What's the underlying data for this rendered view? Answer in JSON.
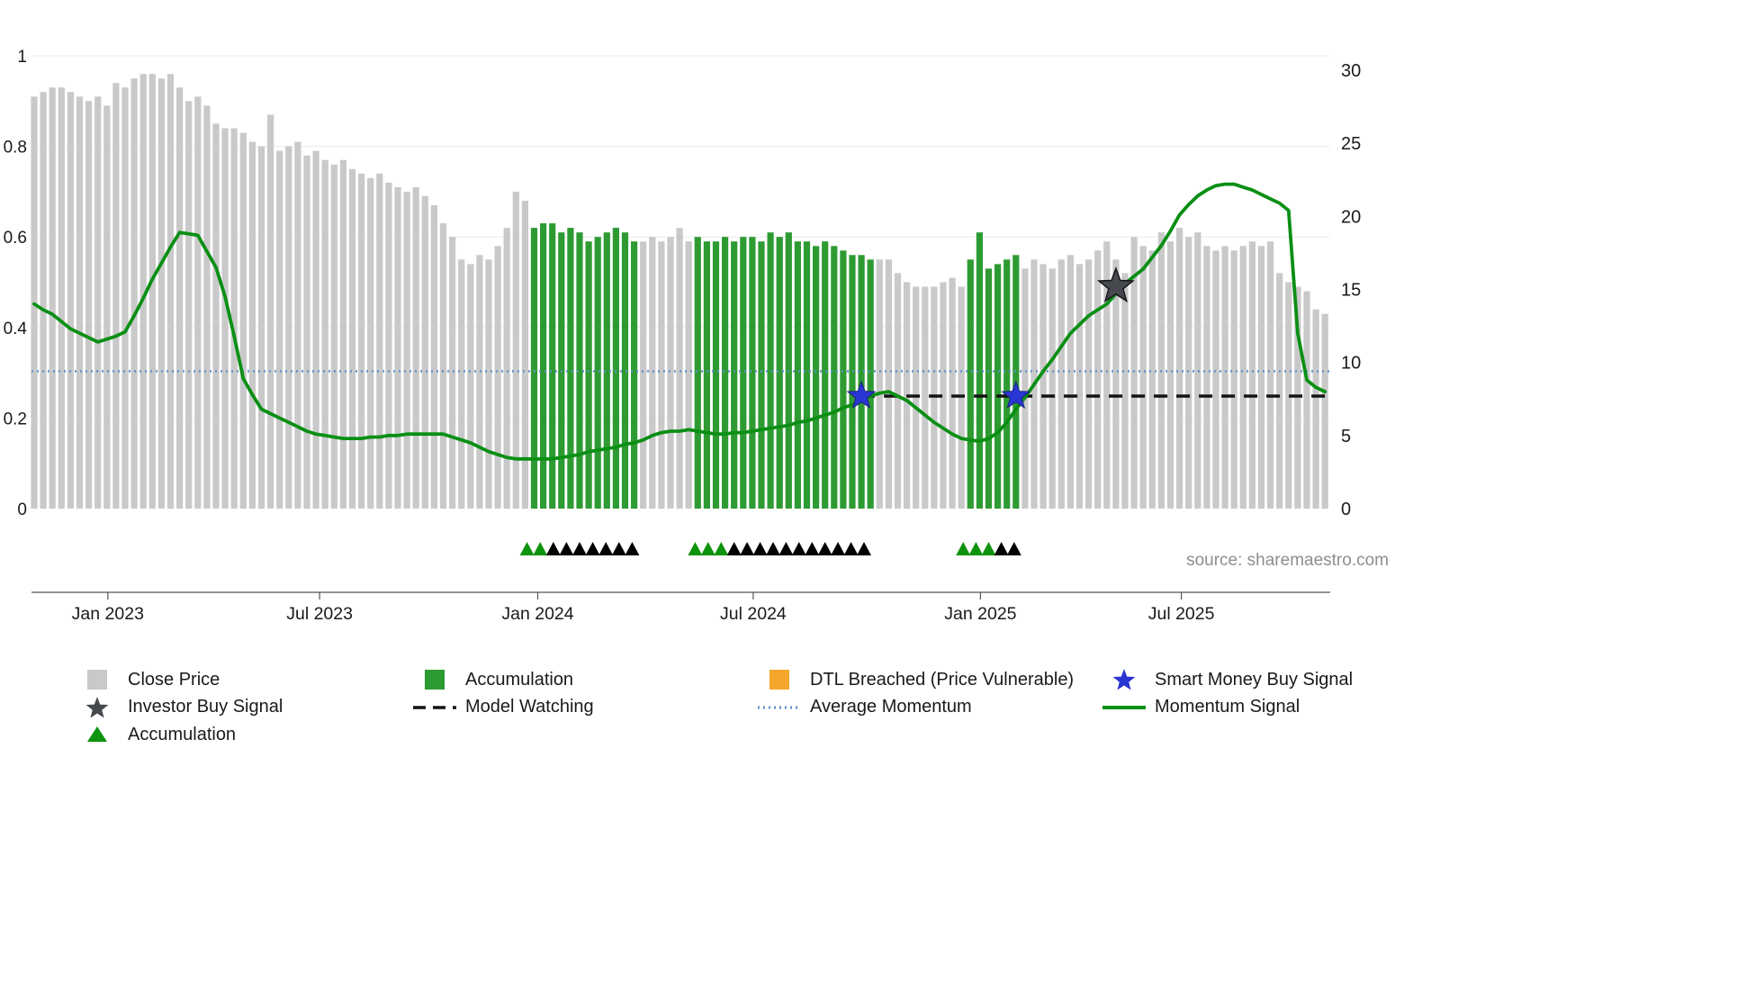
{
  "meta": {
    "source_text": "source: sharemaestro.com"
  },
  "colors": {
    "close_price": "#c9c9c9",
    "accumulation_bar": "#2e9b32",
    "momentum_line": "#0a8f14",
    "average_momentum": "#5c8fc8",
    "model_watching": "#141414",
    "smart_money": "#2936d2",
    "investor_buy": "#45484d",
    "dtl_breached": "#f5a62c",
    "accumulation_marker": "#0f930f",
    "watch_marker": "#000000",
    "grid": "#ebebeb",
    "axis_line": "#555555",
    "source_text": "#8e8e8e"
  },
  "axes": {
    "left_ticks": [
      "0",
      "0.2",
      "0.4",
      "0.6",
      "0.8",
      "1"
    ],
    "left_tick_values": [
      0,
      0.2,
      0.4,
      0.6,
      0.8,
      1
    ],
    "left_range": [
      0,
      1
    ],
    "right_ticks": [
      "0",
      "5",
      "10",
      "15",
      "20",
      "25",
      "30"
    ],
    "right_tick_values": [
      0,
      5,
      10,
      15,
      20,
      25,
      30
    ],
    "right_range": [
      0,
      30
    ],
    "x_ticks": [
      {
        "label": "Jan 2023",
        "index": 8.1
      },
      {
        "label": "Jul 2023",
        "index": 31.4
      },
      {
        "label": "Jan 2024",
        "index": 55.4
      },
      {
        "label": "Jul 2024",
        "index": 79.1
      },
      {
        "label": "Jan 2025",
        "index": 104.1
      },
      {
        "label": "Jul 2025",
        "index": 126.2
      }
    ],
    "grid": "faint-horizontal",
    "legend_position": "bottom"
  },
  "chart_data": {
    "type": "mixed",
    "title": "",
    "xlabel": "",
    "ylabel_left": "",
    "ylabel_right": "",
    "series": [
      {
        "name": "Close Price",
        "type": "bar",
        "axis": "left",
        "values": [
          0.91,
          0.92,
          0.93,
          0.93,
          0.92,
          0.91,
          0.9,
          0.91,
          0.89,
          0.94,
          0.93,
          0.95,
          0.96,
          0.96,
          0.95,
          0.96,
          0.93,
          0.9,
          0.91,
          0.89,
          0.85,
          0.84,
          0.84,
          0.83,
          0.81,
          0.8,
          0.87,
          0.79,
          0.8,
          0.81,
          0.78,
          0.79,
          0.77,
          0.76,
          0.77,
          0.75,
          0.74,
          0.73,
          0.74,
          0.72,
          0.71,
          0.7,
          0.71,
          0.69,
          0.67,
          0.63,
          0.6,
          0.55,
          0.54,
          0.56,
          0.55,
          0.58,
          0.62,
          0.7,
          0.68,
          0.62,
          0.63,
          0.63,
          0.61,
          0.62,
          0.61,
          0.59,
          0.6,
          0.61,
          0.62,
          0.61,
          0.59,
          0.59,
          0.6,
          0.59,
          0.6,
          0.62,
          0.59,
          0.6,
          0.59,
          0.59,
          0.6,
          0.59,
          0.6,
          0.6,
          0.59,
          0.61,
          0.6,
          0.61,
          0.59,
          0.59,
          0.58,
          0.59,
          0.58,
          0.57,
          0.56,
          0.56,
          0.55,
          0.55,
          0.55,
          0.52,
          0.5,
          0.49,
          0.49,
          0.49,
          0.5,
          0.51,
          0.49,
          0.55,
          0.61,
          0.53,
          0.54,
          0.55,
          0.56,
          0.53,
          0.55,
          0.54,
          0.53,
          0.55,
          0.56,
          0.54,
          0.55,
          0.57,
          0.59,
          0.55,
          0.52,
          0.6,
          0.58,
          0.57,
          0.61,
          0.59,
          0.62,
          0.6,
          0.61,
          0.58,
          0.57,
          0.58,
          0.57,
          0.58,
          0.59,
          0.58,
          0.59,
          0.52,
          0.5,
          0.49,
          0.48,
          0.44,
          0.43
        ]
      },
      {
        "name": "Momentum Signal",
        "type": "line",
        "axis": "right",
        "values": [
          14.0,
          13.6,
          13.3,
          12.8,
          12.3,
          12.0,
          11.7,
          11.4,
          11.6,
          11.8,
          12.1,
          13.2,
          14.4,
          15.7,
          16.8,
          17.9,
          18.9,
          18.8,
          18.7,
          17.6,
          16.5,
          14.5,
          11.8,
          8.9,
          7.8,
          6.8,
          6.5,
          6.2,
          5.9,
          5.6,
          5.3,
          5.1,
          5.0,
          4.9,
          4.8,
          4.8,
          4.8,
          4.9,
          4.9,
          5.0,
          5.0,
          5.1,
          5.1,
          5.1,
          5.1,
          5.1,
          4.9,
          4.7,
          4.5,
          4.2,
          3.9,
          3.7,
          3.5,
          3.4,
          3.4,
          3.4,
          3.4,
          3.4,
          3.5,
          3.6,
          3.7,
          3.9,
          4.0,
          4.1,
          4.2,
          4.4,
          4.5,
          4.7,
          5.0,
          5.2,
          5.3,
          5.3,
          5.4,
          5.3,
          5.2,
          5.1,
          5.1,
          5.2,
          5.2,
          5.3,
          5.4,
          5.5,
          5.6,
          5.7,
          5.9,
          6.0,
          6.2,
          6.4,
          6.6,
          6.9,
          7.1,
          7.4,
          7.7,
          7.9,
          8.0,
          7.7,
          7.4,
          6.9,
          6.4,
          5.9,
          5.5,
          5.1,
          4.8,
          4.7,
          4.6,
          4.8,
          5.2,
          5.9,
          6.8,
          7.6,
          8.5,
          9.4,
          10.2,
          11.1,
          12.0,
          12.6,
          13.2,
          13.6,
          14.0,
          14.7,
          15.4,
          15.9,
          16.4,
          17.2,
          18.0,
          19.0,
          20.1,
          20.8,
          21.4,
          21.8,
          22.1,
          22.2,
          22.2,
          22.0,
          21.8,
          21.5,
          21.2,
          20.9,
          20.4,
          12.0,
          8.8,
          8.3,
          8.0
        ]
      },
      {
        "name": "Average Momentum",
        "type": "hline-dotted",
        "axis": "right",
        "value": 9.4
      },
      {
        "name": "Model Watching",
        "type": "hline-dashed",
        "axis": "right",
        "value": 7.7,
        "start_index": 91,
        "end_index": 142
      }
    ],
    "accumulation_ranges": [
      [
        55,
        66
      ],
      [
        73,
        92
      ],
      [
        103,
        108
      ]
    ],
    "markers": {
      "smart_money_buy_signal": [
        {
          "index": 91,
          "value": 7.7
        },
        {
          "index": 108,
          "value": 7.7
        }
      ],
      "investor_buy_signal": [
        {
          "index": 119,
          "value": 15.2
        }
      ],
      "accumulation_triangle_groups": [
        {
          "start_index": 53.5,
          "end_index": 66.5,
          "green": 2,
          "black": 7
        },
        {
          "start_index": 72,
          "end_index": 92,
          "green": 3,
          "black": 11
        },
        {
          "start_index": 101.5,
          "end_index": 108.5,
          "green": 3,
          "black": 2
        }
      ]
    }
  },
  "legend": {
    "columns": [
      {
        "items": [
          {
            "label": "Close Price",
            "symbol": "square",
            "color_key": "close_price"
          },
          {
            "label": "Investor Buy Signal",
            "symbol": "star",
            "color_key": "investor_buy"
          },
          {
            "label": "Accumulation",
            "symbol": "triangle",
            "color_key": "accumulation_marker"
          }
        ]
      },
      {
        "items": [
          {
            "label": "Accumulation",
            "symbol": "square",
            "color_key": "accumulation_bar"
          },
          {
            "label": "Model Watching",
            "symbol": "dashes",
            "color_key": "model_watching"
          }
        ]
      },
      {
        "items": [
          {
            "label": "DTL Breached (Price Vulnerable)",
            "symbol": "square",
            "color_key": "dtl_breached"
          },
          {
            "label": "Average Momentum",
            "symbol": "dots",
            "color_key": "average_momentum"
          }
        ]
      },
      {
        "items": [
          {
            "label": "Smart Money Buy Signal",
            "symbol": "star",
            "color_key": "smart_money"
          },
          {
            "label": "Momentum Signal",
            "symbol": "line",
            "color_key": "momentum_line"
          }
        ]
      }
    ]
  }
}
